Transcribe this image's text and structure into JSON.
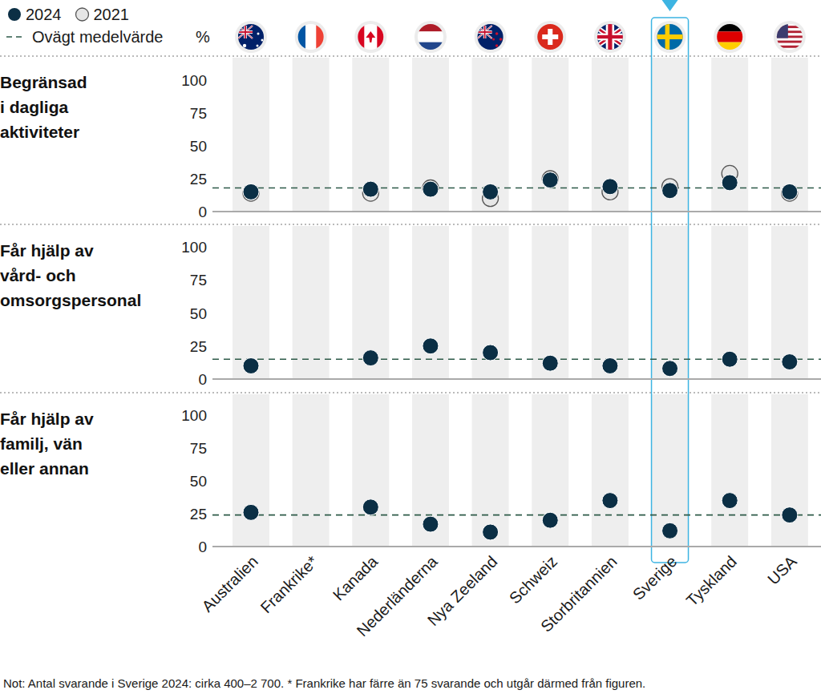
{
  "chart_data": [
    {
      "type": "dot",
      "title": "Begränsad\ni dagliga\naktiviteter",
      "categories": [
        "Australien",
        "Frankrike*",
        "Kanada",
        "Nederländerna",
        "Nya Zeeland",
        "Schweiz",
        "Storbritannien",
        "Sverige",
        "Tyskland",
        "USA"
      ],
      "series": [
        {
          "name": "2024",
          "color": "#0b2f45",
          "marker": "filled",
          "values": [
            15,
            null,
            17,
            17,
            15,
            24,
            19,
            16,
            22,
            15
          ]
        },
        {
          "name": "2021",
          "color": "#e6e6e6",
          "marker": "hollow",
          "values": [
            14,
            null,
            14,
            18,
            10,
            25,
            15,
            19,
            29,
            14
          ]
        }
      ],
      "mean": 18,
      "ylim": [
        0,
        100
      ],
      "yticks": [
        0,
        25,
        50,
        75,
        100
      ],
      "grid": false
    },
    {
      "type": "dot",
      "title": "Får hjälp av\nvård- och\nomsorgspersonal",
      "categories": [
        "Australien",
        "Frankrike*",
        "Kanada",
        "Nederländerna",
        "Nya Zeeland",
        "Schweiz",
        "Storbritannien",
        "Sverige",
        "Tyskland",
        "USA"
      ],
      "series": [
        {
          "name": "2024",
          "color": "#0b2f45",
          "marker": "filled",
          "values": [
            10,
            null,
            16,
            25,
            20,
            12,
            10,
            8,
            15,
            13
          ]
        }
      ],
      "mean": 15,
      "ylim": [
        0,
        100
      ],
      "yticks": [
        0,
        25,
        50,
        75,
        100
      ],
      "grid": false
    },
    {
      "type": "dot",
      "title": "Får hjälp av\nfamilj, vän\neller annan",
      "categories": [
        "Australien",
        "Frankrike*",
        "Kanada",
        "Nederländerna",
        "Nya Zeeland",
        "Schweiz",
        "Storbritannien",
        "Sverige",
        "Tyskland",
        "USA"
      ],
      "series": [
        {
          "name": "2024",
          "color": "#0b2f45",
          "marker": "filled",
          "values": [
            26,
            null,
            30,
            17,
            11,
            20,
            35,
            12,
            35,
            24
          ]
        }
      ],
      "mean": 24,
      "ylim": [
        0,
        100
      ],
      "yticks": [
        0,
        25,
        50,
        75,
        100
      ],
      "grid": false
    }
  ],
  "mean_label": "Ovägt medelvärde",
  "unit": "%",
  "note": "Not: Antal svarande i Sverige 2024: cirka 400–2 700. * Frankrike har färre än 75 svarande och utgår därmed från figuren."
}
